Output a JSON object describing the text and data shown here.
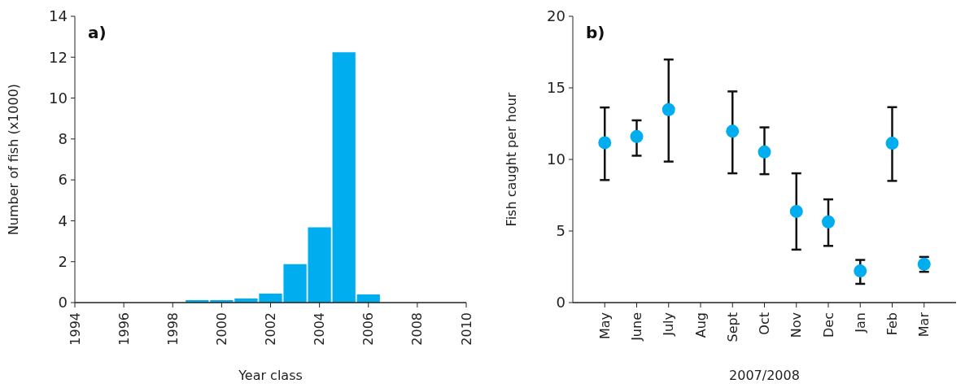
{
  "chart_data": [
    {
      "type": "bar",
      "title": "a)",
      "xlabel": "Year class",
      "ylabel": "Number of fish (x1000)",
      "x": [
        1999,
        2000,
        2001,
        2002,
        2003,
        2004,
        2005,
        2006
      ],
      "values": [
        0.12,
        0.12,
        0.2,
        0.44,
        1.88,
        3.68,
        12.24,
        0.4
      ],
      "color": "#00aeef",
      "xlim": [
        1994,
        2010
      ],
      "xticks": [
        1994,
        1996,
        1998,
        2000,
        2002,
        2004,
        2006,
        2008,
        2010
      ],
      "ylim": [
        0,
        14
      ],
      "yticks": [
        0,
        2,
        4,
        6,
        8,
        10,
        12,
        14
      ],
      "grid": false
    },
    {
      "type": "scatter",
      "title": "b)",
      "xlabel": "2007/2008",
      "ylabel": "Fish caught per hour",
      "categories": [
        "May",
        "June",
        "July",
        "Aug",
        "Sept",
        "Oct",
        "Nov",
        "Dec",
        "Jan",
        "Feb",
        "Mar"
      ],
      "values": [
        11.17,
        11.6,
        13.48,
        null,
        11.97,
        10.52,
        6.37,
        5.64,
        2.21,
        11.13,
        2.68
      ],
      "errors": [
        [
          8.56,
          13.63
        ],
        [
          10.26,
          12.73
        ],
        [
          9.85,
          16.98
        ],
        null,
        [
          9.03,
          14.75
        ],
        [
          8.97,
          12.24
        ],
        [
          3.7,
          9.03
        ],
        [
          3.96,
          7.21
        ],
        [
          1.31,
          2.98
        ],
        [
          8.5,
          13.65
        ],
        [
          2.15,
          3.19
        ]
      ],
      "color": "#00aeef",
      "marker": "circle",
      "ylim": [
        0,
        20
      ],
      "yticks": [
        0,
        5,
        10,
        15,
        20
      ],
      "grid": false
    }
  ]
}
